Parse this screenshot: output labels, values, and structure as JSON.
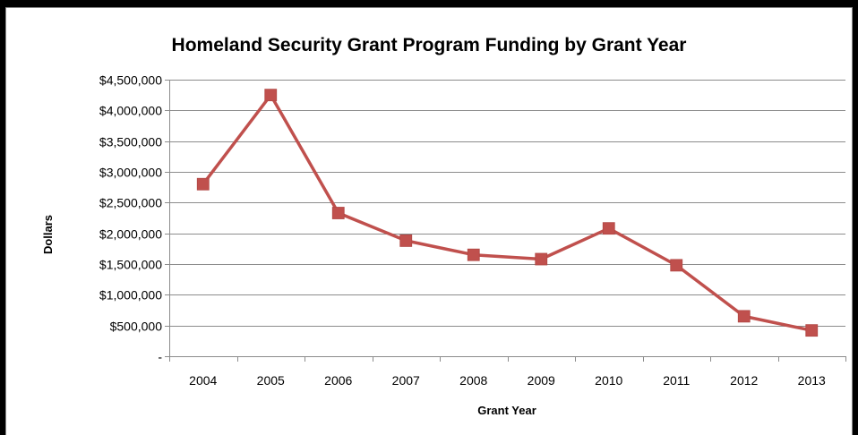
{
  "chart_data": {
    "type": "line",
    "title": "Homeland Security Grant Program Funding by Grant Year",
    "xlabel": "Grant Year",
    "ylabel": "Dollars",
    "categories": [
      "2004",
      "2005",
      "2006",
      "2007",
      "2008",
      "2009",
      "2010",
      "2011",
      "2012",
      "2013"
    ],
    "series": [
      {
        "values": [
          2800000,
          4250000,
          2330000,
          1880000,
          1650000,
          1580000,
          2080000,
          1480000,
          650000,
          420000
        ],
        "color": "#c0504d",
        "marker": "square"
      }
    ],
    "ylim": [
      0,
      4500000
    ],
    "y_ticks": [
      0,
      500000,
      1000000,
      1500000,
      2000000,
      2500000,
      3000000,
      3500000,
      4000000,
      4500000
    ],
    "y_tick_labels": [
      "-",
      "$500,000",
      "$1,000,000",
      "$1,500,000",
      "$2,000,000",
      "$2,500,000",
      "$3,000,000",
      "$3,500,000",
      "$4,000,000",
      "$4,500,000"
    ],
    "grid": true,
    "legend": "none"
  }
}
